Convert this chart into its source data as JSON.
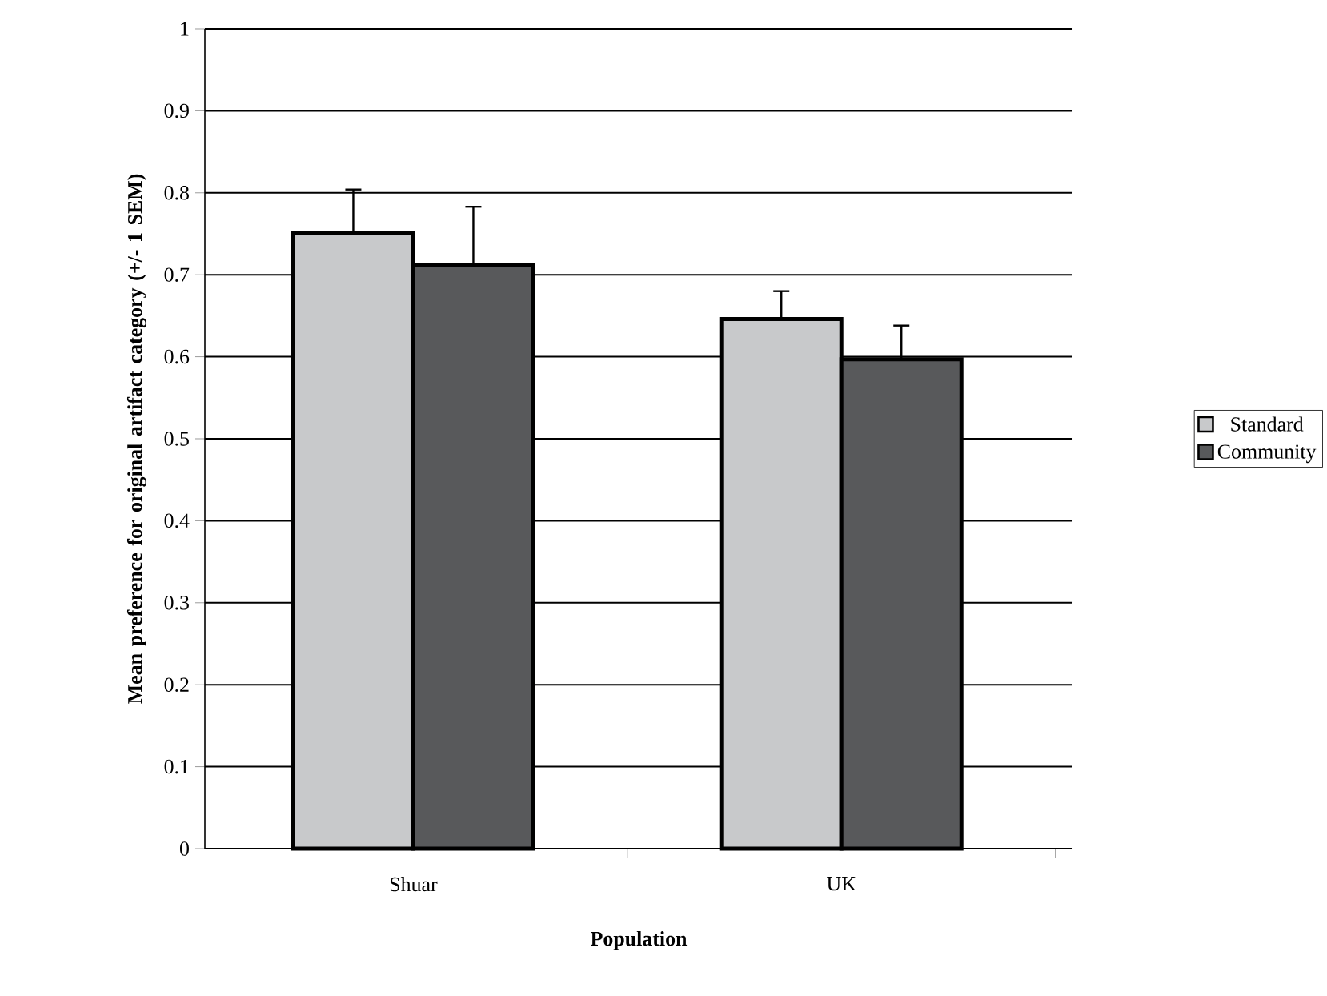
{
  "chart_data": {
    "type": "bar",
    "xlabel": "Population",
    "ylabel": "Mean preference for original artifact category (+/- 1 SEM)",
    "categories": [
      "Shuar",
      "UK"
    ],
    "series": [
      {
        "name": "Standard",
        "color": "#c8c9cb",
        "values": [
          0.751,
          0.646
        ],
        "errors": [
          [
            0.751,
            0.804
          ],
          [
            0.646,
            0.68
          ]
        ]
      },
      {
        "name": "Community",
        "color": "#58595b",
        "values": [
          0.712,
          0.597
        ],
        "errors": [
          [
            0.712,
            0.783
          ],
          [
            0.597,
            0.638
          ]
        ]
      }
    ],
    "ylim": [
      0,
      1
    ],
    "yticks": [
      0,
      0.1,
      0.2,
      0.3,
      0.4,
      0.5,
      0.6,
      0.7,
      0.8,
      0.9,
      1
    ],
    "grid": "y",
    "legend": "right"
  }
}
